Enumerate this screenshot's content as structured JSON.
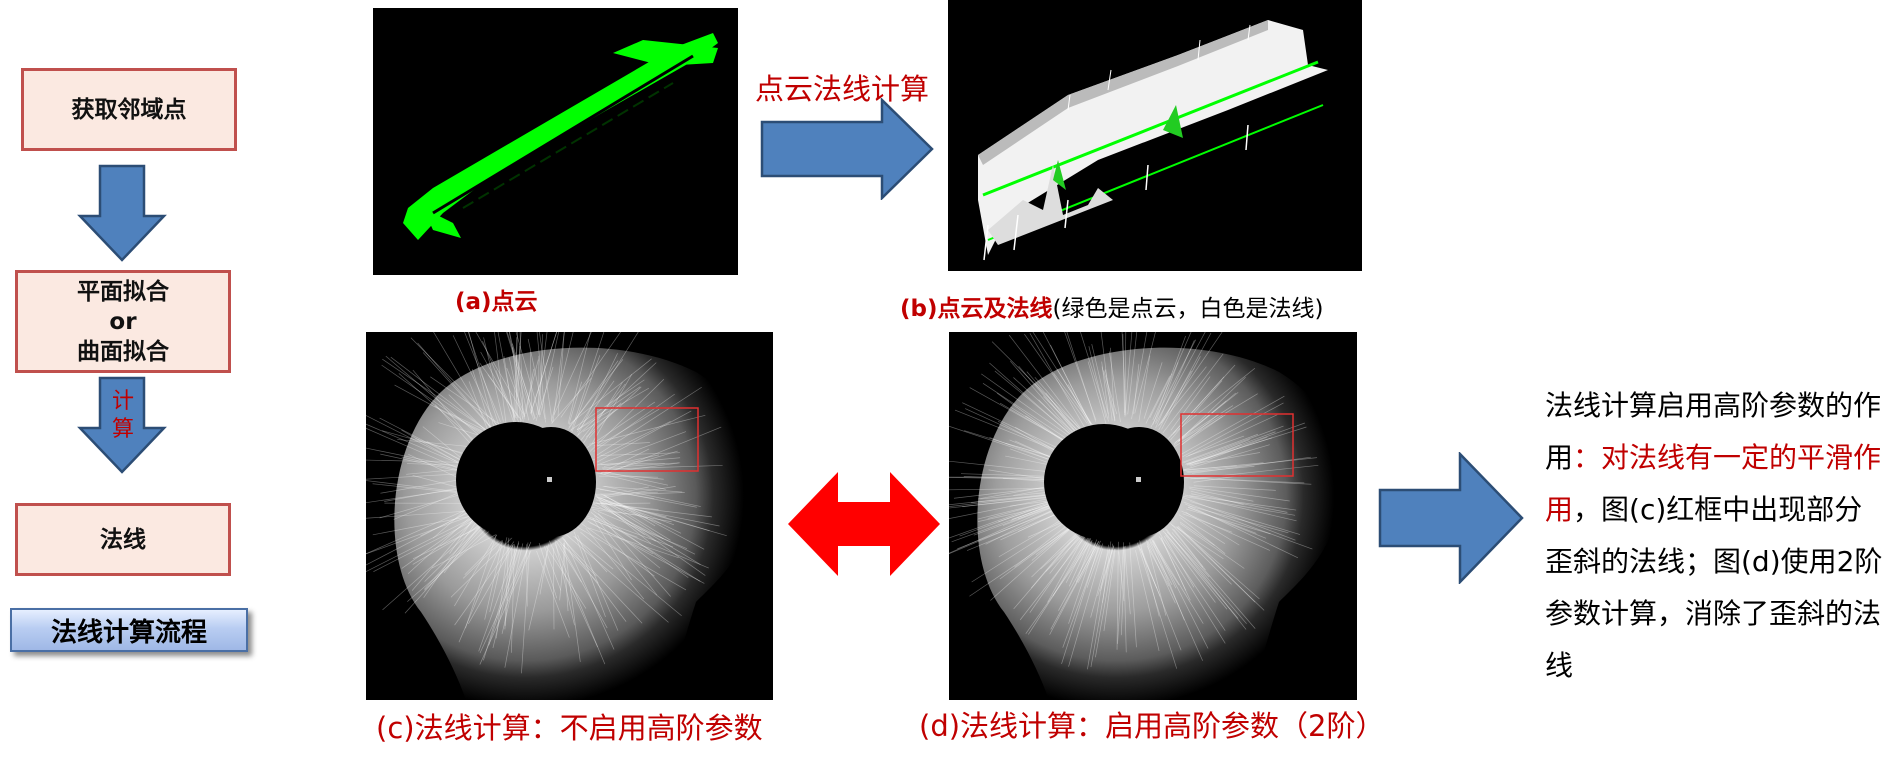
{
  "flowchart": {
    "steps": [
      {
        "lines": [
          "获取邻域点"
        ]
      },
      {
        "lines": [
          "平面拟合",
          "or",
          "曲面拟合"
        ]
      },
      {
        "lines": [
          "法线"
        ]
      }
    ],
    "calc_label": "计算",
    "title": "法线计算流程"
  },
  "top": {
    "arrow_label": "点云法线计算",
    "caption_a": "(a)点云",
    "caption_b_bold": "(b)点云及法线",
    "caption_b_normal": "(绿色是点云，白色是法线)"
  },
  "bottom": {
    "caption_c": "(c)法线计算：不启用高阶参数",
    "caption_d": "(d)法线计算：启用高阶参数（2阶）"
  },
  "note": {
    "part1": "法线计算启用高阶参数的作用",
    "part2": "：对法线有一定的平滑作用",
    "part3": "，图(c)红框中出现部分歪斜的法线；图(d)使用2阶参数计算，消除了歪斜的法线"
  },
  "colors": {
    "box_fill": "#fbe9e1",
    "box_border": "#c0504d",
    "arrow_blue": "#4f81bd",
    "accent_red": "#c00000",
    "point_green": "#00ff00",
    "double_arrow_red": "#ff0000"
  },
  "icons": [
    "down-arrow-icon",
    "right-arrow-icon",
    "double-headed-arrow-icon"
  ]
}
